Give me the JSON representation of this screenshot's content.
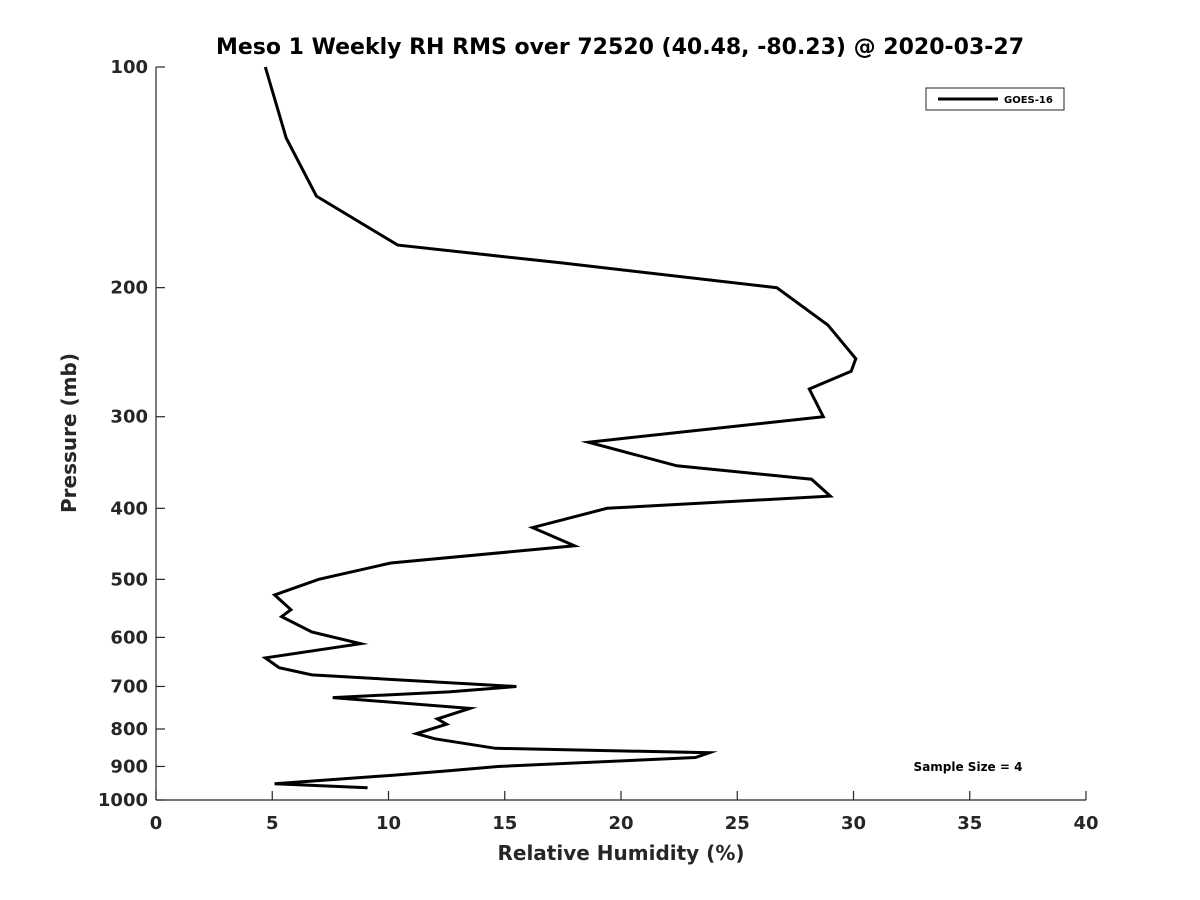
{
  "chart_data": {
    "type": "line",
    "title": "Meso 1 Weekly RH RMS over 72520 (40.48, -80.23) @ 2020-03-27",
    "xlabel": "Relative Humidity (%)",
    "ylabel": "Pressure (mb)",
    "xlim": [
      0,
      40
    ],
    "ylim": [
      100,
      1000
    ],
    "y_scale": "log",
    "y_reversed": true,
    "x_ticks": [
      0,
      5,
      10,
      15,
      20,
      25,
      30,
      35,
      40
    ],
    "y_ticks": [
      100,
      200,
      300,
      400,
      500,
      600,
      700,
      800,
      900,
      1000
    ],
    "grid": false,
    "legend_position": "top-right",
    "annotation": "Sample Size = 4",
    "series": [
      {
        "name": "GOES-16",
        "color": "#000000",
        "points": [
          [
            4.7,
            100
          ],
          [
            5.6,
            125
          ],
          [
            6.9,
            150
          ],
          [
            10.4,
            175
          ],
          [
            17.4,
            185
          ],
          [
            26.7,
            200
          ],
          [
            28.9,
            225
          ],
          [
            30.1,
            250
          ],
          [
            29.9,
            260
          ],
          [
            28.1,
            275
          ],
          [
            28.7,
            300
          ],
          [
            18.6,
            325
          ],
          [
            22.4,
            350
          ],
          [
            28.2,
            365
          ],
          [
            29.0,
            385
          ],
          [
            19.4,
            400
          ],
          [
            16.2,
            425
          ],
          [
            18.0,
            450
          ],
          [
            10.1,
            475
          ],
          [
            7.0,
            500
          ],
          [
            5.1,
            525
          ],
          [
            5.8,
            550
          ],
          [
            5.4,
            562
          ],
          [
            6.7,
            590
          ],
          [
            8.8,
            612
          ],
          [
            4.7,
            640
          ],
          [
            5.3,
            660
          ],
          [
            6.7,
            675
          ],
          [
            15.5,
            700
          ],
          [
            12.6,
            712
          ],
          [
            7.6,
            725
          ],
          [
            13.5,
            750
          ],
          [
            12.1,
            775
          ],
          [
            12.5,
            788
          ],
          [
            11.2,
            812
          ],
          [
            12.0,
            825
          ],
          [
            14.6,
            850
          ],
          [
            23.8,
            862
          ],
          [
            23.2,
            875
          ],
          [
            14.7,
            900
          ],
          [
            12.6,
            912
          ],
          [
            10.2,
            925
          ],
          [
            5.1,
            950
          ],
          [
            9.1,
            962
          ]
        ]
      }
    ]
  }
}
